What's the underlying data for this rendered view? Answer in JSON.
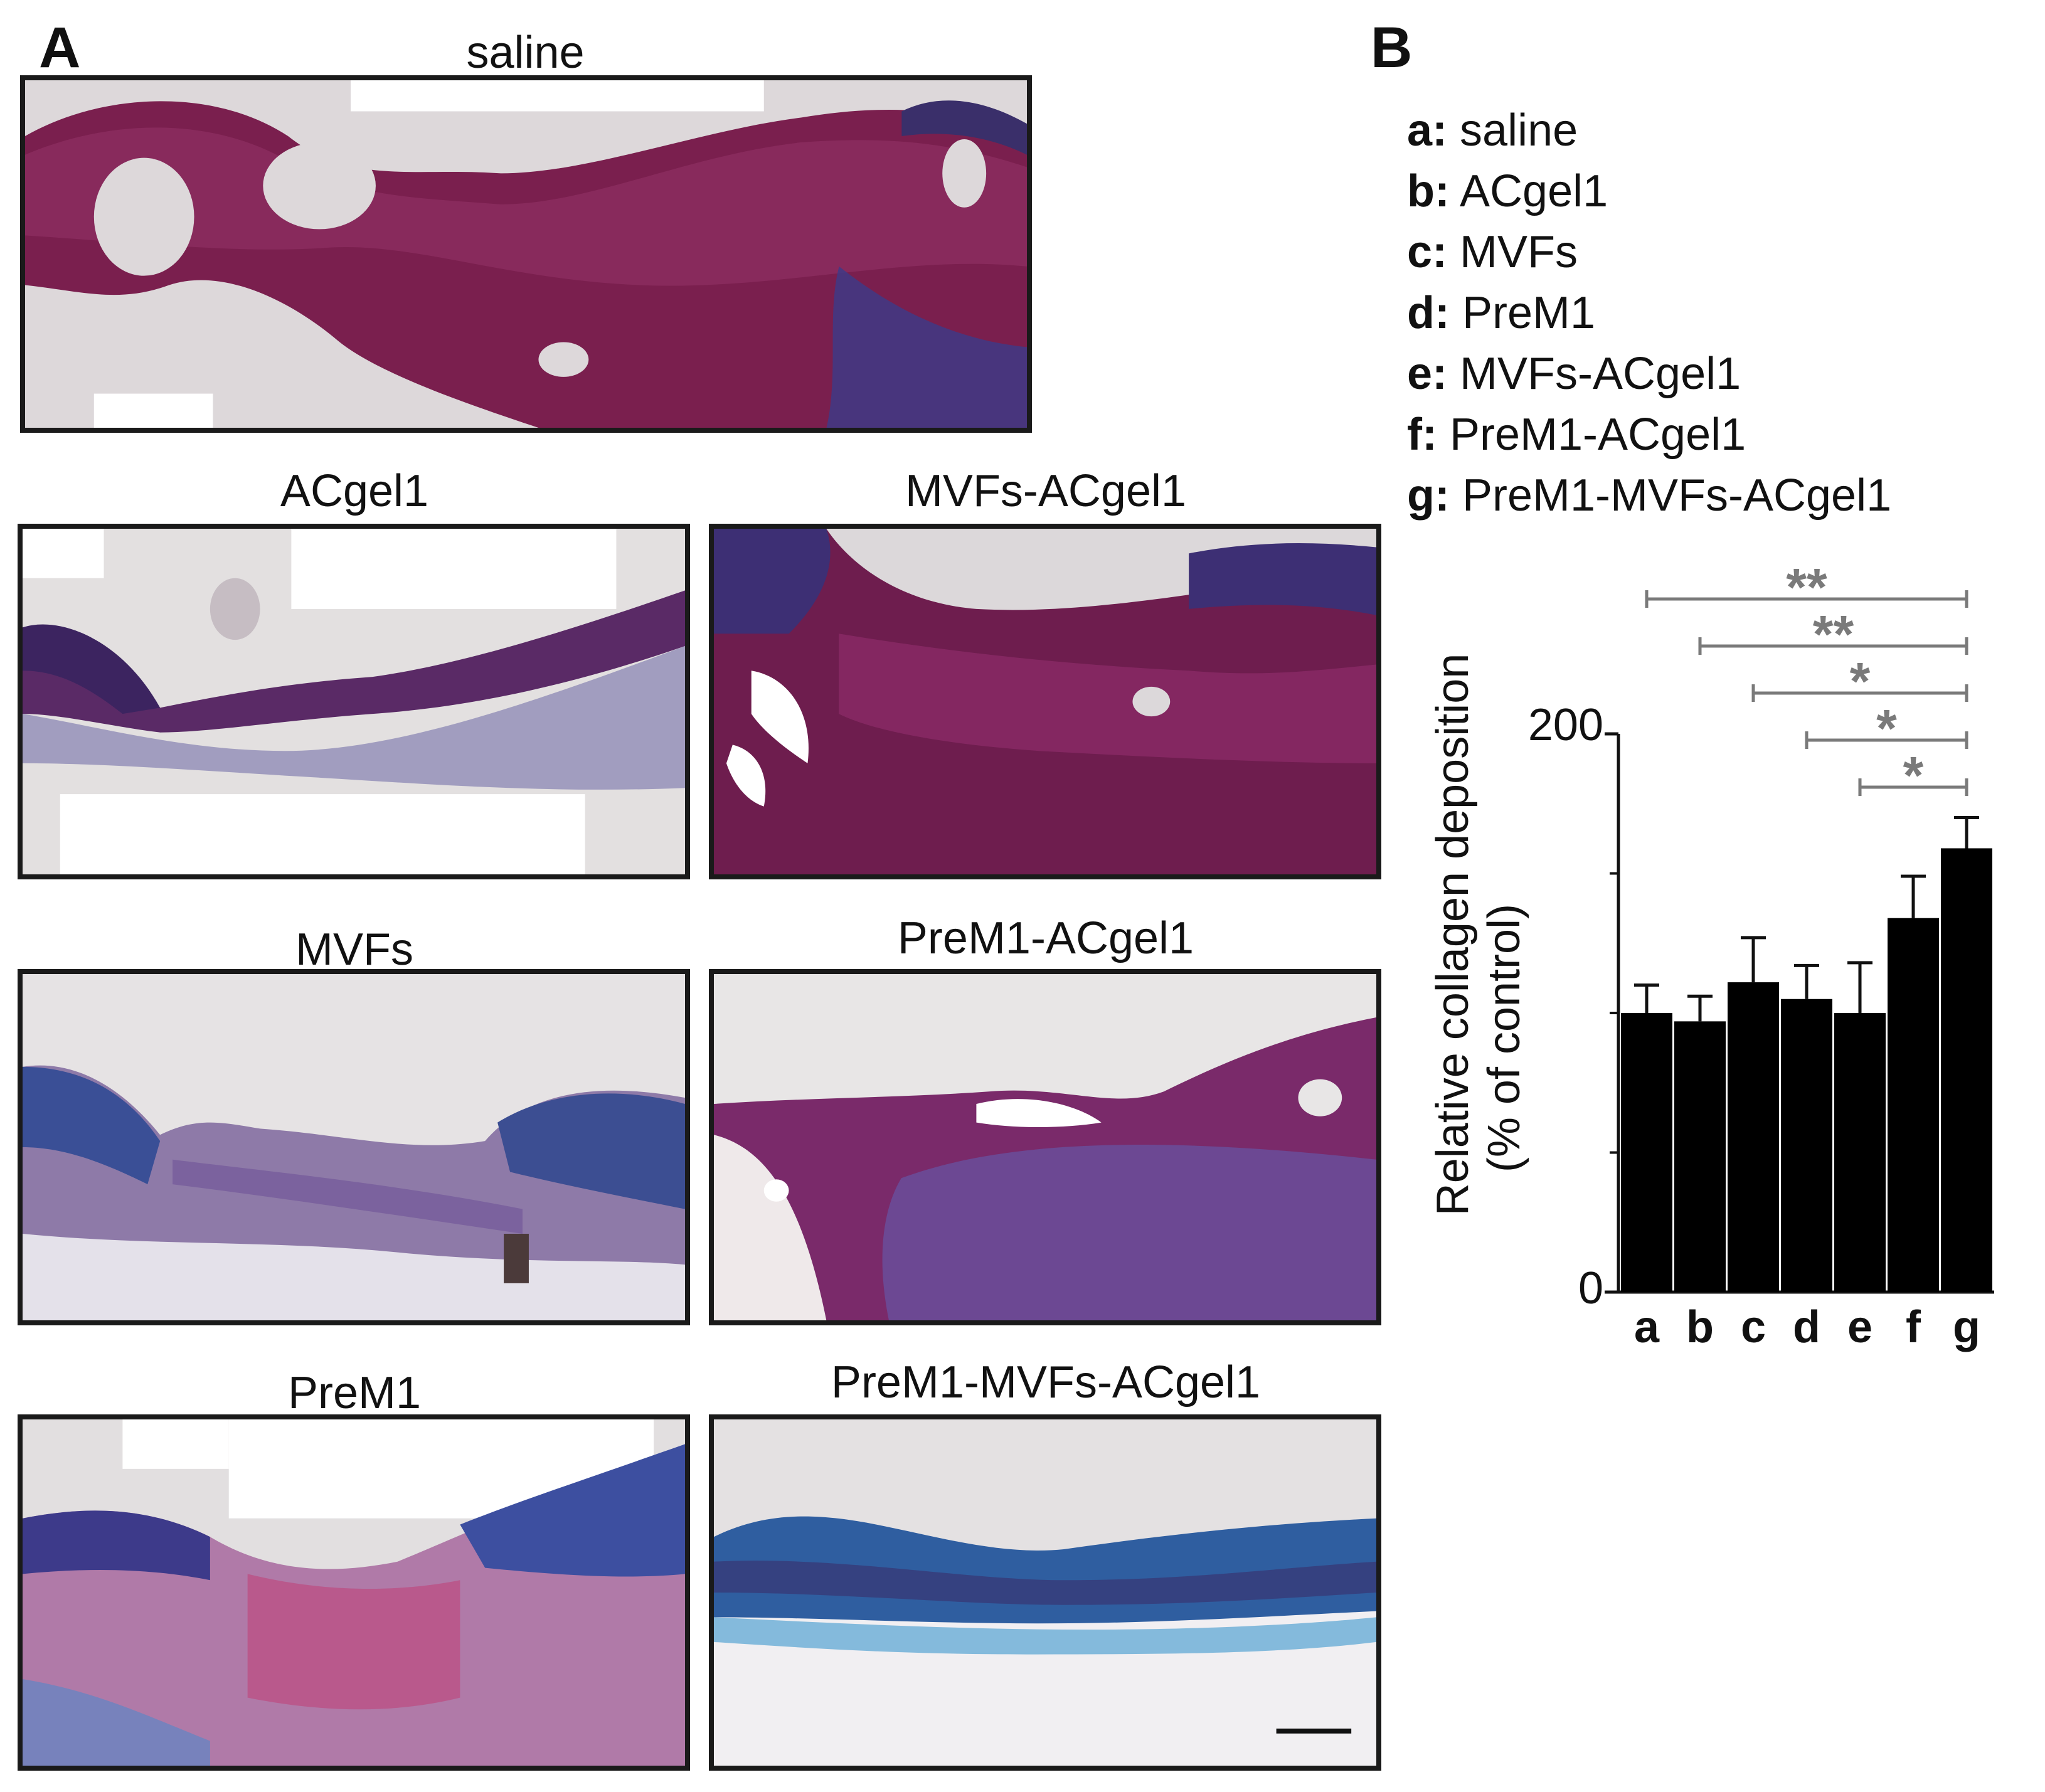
{
  "panel_a_letter": "A",
  "panel_b_letter": "B",
  "micrographs": [
    {
      "title": "saline"
    },
    {
      "title": "ACgel1"
    },
    {
      "title": "MVFs-ACgel1"
    },
    {
      "title": "MVFs"
    },
    {
      "title": "PreM1-ACgel1"
    },
    {
      "title": "PreM1"
    },
    {
      "title": "PreM1-MVFs-ACgel1"
    }
  ],
  "legend": [
    {
      "key": "a:",
      "label": "saline"
    },
    {
      "key": "b:",
      "label": "ACgel1"
    },
    {
      "key": "c:",
      "label": "MVFs"
    },
    {
      "key": "d:",
      "label": "PreM1"
    },
    {
      "key": "e:",
      "label": "MVFs-ACgel1"
    },
    {
      "key": "f:",
      "label": "PreM1-ACgel1"
    },
    {
      "key": "g:",
      "label": "PreM1-MVFs-ACgel1"
    }
  ],
  "chart_data": {
    "type": "bar",
    "categories": [
      "a",
      "b",
      "c",
      "d",
      "e",
      "f",
      "g"
    ],
    "values": [
      100,
      97,
      111,
      105,
      100,
      134,
      159
    ],
    "errors": [
      10,
      9,
      16,
      12,
      18,
      15,
      11
    ],
    "ylabel_line1": "Relative collagen deposition",
    "ylabel_line2": "(% of control)",
    "ylim": [
      0,
      200
    ],
    "ytick_labels": [
      "0",
      "200"
    ],
    "minor_ticks": [
      50,
      100,
      150
    ],
    "bar_color": "#000000",
    "significance": [
      {
        "from": "a",
        "to": "g",
        "label": "**"
      },
      {
        "from": "b",
        "to": "g",
        "label": "**"
      },
      {
        "from": "c",
        "to": "g",
        "label": "*"
      },
      {
        "from": "d",
        "to": "g",
        "label": "*"
      },
      {
        "from": "e",
        "to": "g",
        "label": "*"
      }
    ],
    "significance_color": "#7a7a7a"
  }
}
